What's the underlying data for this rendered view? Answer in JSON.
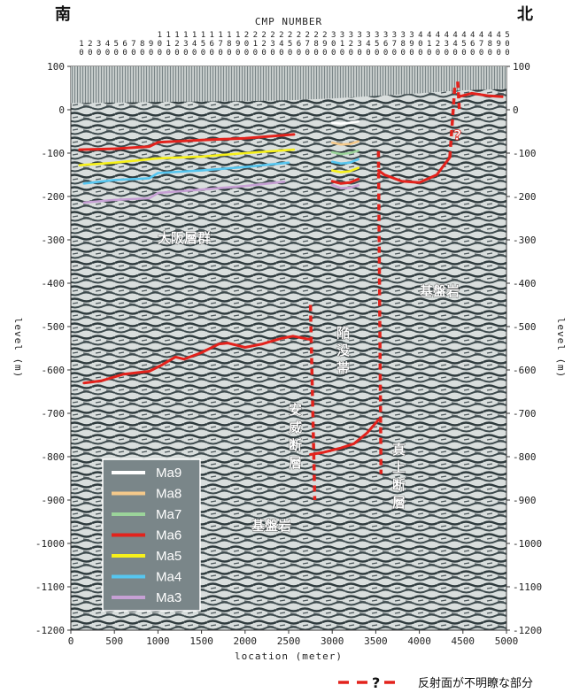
{
  "chart_data": {
    "type": "line",
    "directions": {
      "left": "南",
      "right": "北"
    },
    "top_axis_title": "CMP NUMBER",
    "cmp_numbers": [
      1,
      2,
      3,
      4,
      5,
      6,
      7,
      8,
      9,
      10,
      11,
      12,
      13,
      14,
      15,
      16,
      17,
      18,
      19,
      20,
      21,
      22,
      23,
      24,
      25,
      26,
      27,
      28,
      29,
      30,
      31,
      32,
      33,
      34,
      35,
      36,
      37,
      38,
      39,
      40,
      41,
      42,
      43,
      44,
      45,
      46,
      47,
      48,
      49,
      50
    ],
    "xlabel": "location (meter)",
    "ylabel": "level (m)",
    "xlim": [
      0,
      5000
    ],
    "ylim": [
      -1200,
      100
    ],
    "xticks": [
      0,
      500,
      1000,
      1500,
      2000,
      2500,
      3000,
      3500,
      4000,
      4500,
      5000
    ],
    "yticks": [
      100,
      0,
      -100,
      -200,
      -300,
      -400,
      -500,
      -600,
      -700,
      -800,
      -900,
      -1000,
      -1100,
      -1200
    ],
    "colors": {
      "Ma9": "#ffffff",
      "Ma8": "#f5c98a",
      "Ma7": "#9bd49a",
      "Ma6": "#e3221c",
      "Ma5": "#f7f11a",
      "Ma4": "#56c6f0",
      "Ma3": "#c6a0d4",
      "fault": "#e3221c"
    },
    "series": [
      {
        "name": "Ma6",
        "segments": [
          [
            [
              100,
              -92
            ],
            [
              500,
              -90
            ],
            [
              900,
              -85
            ],
            [
              1000,
              -75
            ],
            [
              1500,
              -70
            ],
            [
              2000,
              -66
            ],
            [
              2560,
              -57
            ]
          ],
          [
            [
              3000,
              -165
            ],
            [
              3100,
              -170
            ],
            [
              3200,
              -168
            ],
            [
              3300,
              -160
            ]
          ],
          [
            [
              3530,
              -140
            ],
            [
              3600,
              -150
            ],
            [
              3800,
              -165
            ],
            [
              4000,
              -168
            ],
            [
              4200,
              -150
            ],
            [
              4350,
              -110
            ]
          ],
          [
            [
              4450,
              30
            ],
            [
              4600,
              38
            ],
            [
              4800,
              32
            ],
            [
              4950,
              30
            ]
          ]
        ]
      },
      {
        "name": "Ma5",
        "segments": [
          [
            [
              100,
              -128
            ],
            [
              500,
              -122
            ],
            [
              1000,
              -112
            ],
            [
              1500,
              -108
            ],
            [
              2000,
              -100
            ],
            [
              2560,
              -92
            ]
          ],
          [
            [
              3000,
              -140
            ],
            [
              3100,
              -144
            ],
            [
              3200,
              -142
            ],
            [
              3300,
              -134
            ]
          ]
        ]
      },
      {
        "name": "Ma4",
        "segments": [
          [
            [
              150,
              -170
            ],
            [
              500,
              -162
            ],
            [
              900,
              -158
            ],
            [
              1000,
              -146
            ],
            [
              1500,
              -140
            ],
            [
              2000,
              -132
            ],
            [
              2500,
              -122
            ]
          ],
          [
            [
              3000,
              -120
            ],
            [
              3100,
              -124
            ],
            [
              3200,
              -122
            ],
            [
              3300,
              -114
            ]
          ]
        ]
      },
      {
        "name": "Ma3",
        "segments": [
          [
            [
              150,
              -214
            ],
            [
              500,
              -208
            ],
            [
              900,
              -204
            ],
            [
              1000,
              -192
            ],
            [
              1500,
              -184
            ],
            [
              2000,
              -176
            ],
            [
              2450,
              -166
            ]
          ],
          [
            [
              3000,
              -173
            ],
            [
              3100,
              -181
            ],
            [
              3200,
              -180
            ],
            [
              3300,
              -174
            ]
          ]
        ]
      },
      {
        "name": "Ma7",
        "segments": [
          [
            [
              3000,
              -98
            ],
            [
              3100,
              -102
            ],
            [
              3200,
              -100
            ],
            [
              3300,
              -94
            ]
          ]
        ]
      },
      {
        "name": "Ma8",
        "segments": [
          [
            [
              3000,
              -76
            ],
            [
              3100,
              -80
            ],
            [
              3200,
              -79
            ],
            [
              3300,
              -73
            ]
          ]
        ]
      },
      {
        "name": "Ma9",
        "segments": [
          [
            [
              3000,
              -30
            ],
            [
              3100,
              -32
            ],
            [
              3200,
              -30
            ],
            [
              3300,
              -27
            ]
          ]
        ]
      },
      {
        "name": "basement",
        "segments": [
          [
            [
              150,
              -630
            ],
            [
              350,
              -625
            ],
            [
              600,
              -610
            ],
            [
              900,
              -603
            ],
            [
              1050,
              -588
            ],
            [
              1200,
              -570
            ],
            [
              1300,
              -575
            ],
            [
              1500,
              -560
            ],
            [
              1700,
              -540
            ],
            [
              1800,
              -538
            ],
            [
              2000,
              -548
            ],
            [
              2200,
              -540
            ],
            [
              2400,
              -528
            ],
            [
              2550,
              -522
            ],
            [
              2750,
              -530
            ]
          ],
          [
            [
              2750,
              -795
            ],
            [
              2900,
              -790
            ],
            [
              3100,
              -780
            ],
            [
              3250,
              -770
            ],
            [
              3400,
              -745
            ],
            [
              3530,
              -715
            ]
          ]
        ]
      }
    ],
    "faults": [
      {
        "segments": [
          [
            [
              2750,
              -450
            ],
            [
              2800,
              -900
            ]
          ],
          [
            [
              3530,
              -95
            ],
            [
              3560,
              -840
            ]
          ],
          [
            [
              4350,
              -110
            ],
            [
              4410,
              60
            ]
          ],
          [
            [
              4440,
              65
            ],
            [
              4460,
              -5
            ]
          ]
        ]
      }
    ],
    "surface": [
      [
        0,
        15
      ],
      [
        1000,
        18
      ],
      [
        2000,
        20
      ],
      [
        2500,
        22
      ],
      [
        3000,
        26
      ],
      [
        3500,
        32
      ],
      [
        4000,
        38
      ],
      [
        4500,
        45
      ],
      [
        5000,
        48
      ]
    ],
    "question_mark": "?",
    "annotations": {
      "osaka_group": "大阪層群",
      "basement_right": "基盤岩",
      "basement_bottom": "基盤岩",
      "subsidence_zone": "陥没帯",
      "ai_fault": "安威断層",
      "shinjo_fault": "真上断層"
    },
    "legend": [
      "Ma9",
      "Ma8",
      "Ma7",
      "Ma6",
      "Ma5",
      "Ma4",
      "Ma3"
    ],
    "footnote": "反射面が不明瞭な部分"
  }
}
